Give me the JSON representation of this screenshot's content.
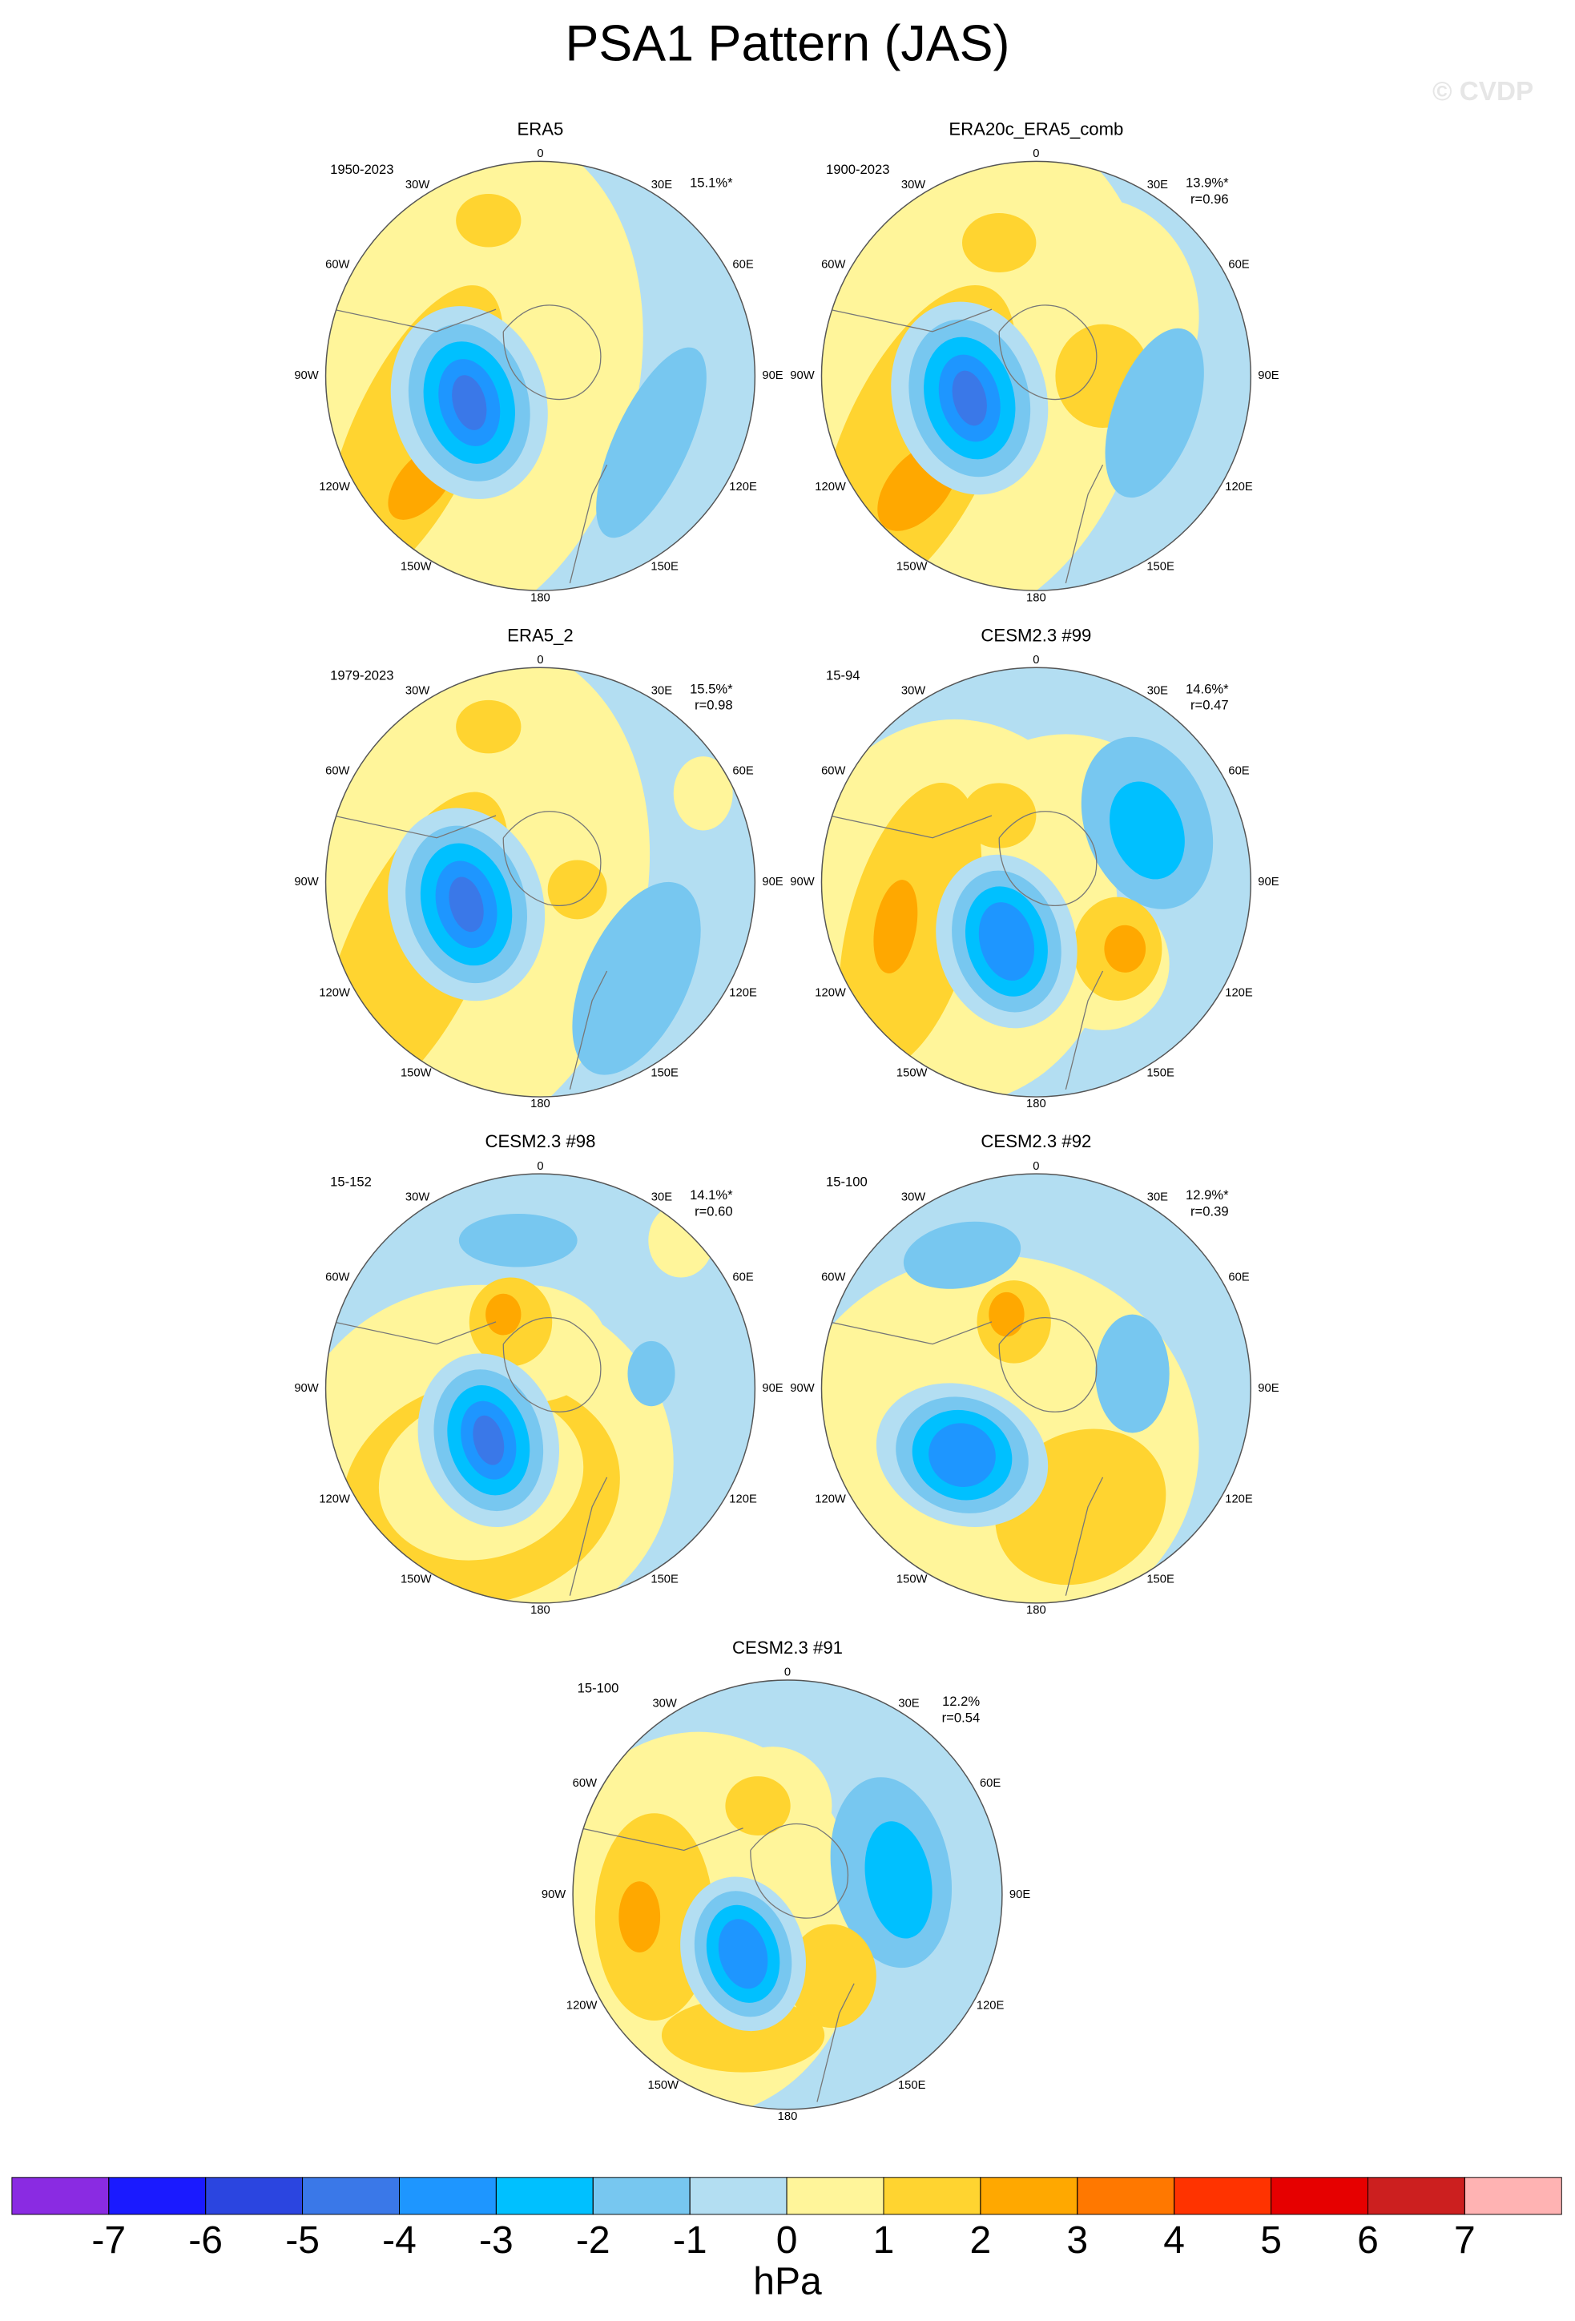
{
  "chart_data": {
    "type": "polar-map-panels",
    "title": "PSA1 Pattern (JAS)",
    "watermark": "© CVDP",
    "lon_labels": [
      "0",
      "30E",
      "60E",
      "90E",
      "120E",
      "150E",
      "180",
      "150W",
      "120W",
      "90W",
      "60W",
      "30W"
    ],
    "panels": [
      {
        "title": "ERA5",
        "period": "1950-2023",
        "pct": "15.1%*"
      },
      {
        "title": "ERA20c_ERA5_comb",
        "period": "1900-2023",
        "pct": "13.9%*",
        "r": "r=0.96"
      },
      {
        "title": "ERA5_2",
        "period": "1979-2023",
        "pct": "15.5%*",
        "r": "r=0.98"
      },
      {
        "title": "CESM2.3 #99",
        "period": "15-94",
        "pct": "14.6%*",
        "r": "r=0.47"
      },
      {
        "title": "CESM2.3 #98",
        "period": "15-152",
        "pct": "14.1%*",
        "r": "r=0.60"
      },
      {
        "title": "CESM2.3 #92",
        "period": "15-100",
        "pct": "12.9%*",
        "r": "r=0.39"
      },
      {
        "title": "CESM2.3 #91",
        "period": "15-100",
        "pct": "12.2%",
        "r": "r=0.54"
      }
    ],
    "colorbar": {
      "colors": [
        "#8a2be2",
        "#1a1aff",
        "#2b45e0",
        "#3a78e8",
        "#1e96ff",
        "#00c0ff",
        "#77c7f0",
        "#b3def2",
        "#fff59a",
        "#ffd430",
        "#ffa800",
        "#ff7800",
        "#ff3300",
        "#e60000",
        "#cc1f1f",
        "#ffb3b3"
      ],
      "levels": [
        -7,
        -6,
        -5,
        -4,
        -3,
        -2,
        -1,
        0,
        1,
        2,
        3,
        4,
        5,
        6,
        7
      ],
      "label": "hPa"
    }
  }
}
